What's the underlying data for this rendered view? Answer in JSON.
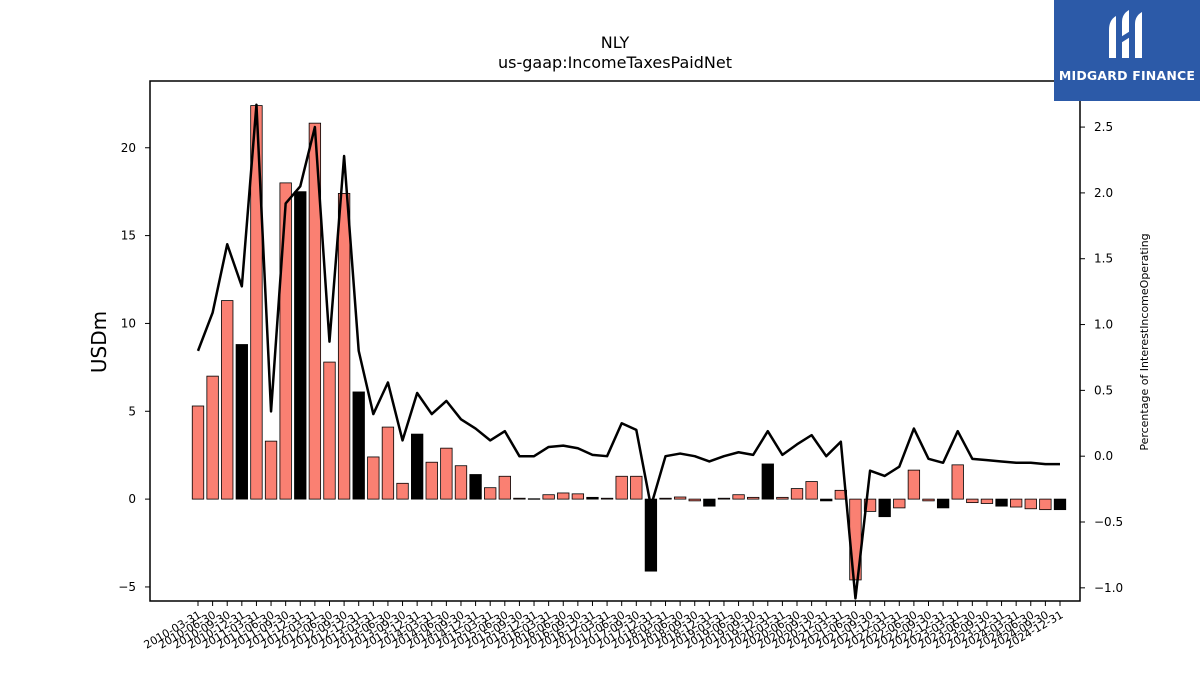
{
  "chart_data": {
    "type": "bar",
    "title": "NLY",
    "subtitle": "us-gaap:IncomeTaxesPaidNet",
    "ylabel": "USDm",
    "y2label": "Percentage of InterestIncomeOperating",
    "ylim": [
      -5.8,
      23.8
    ],
    "y2lim": [
      -1.1,
      2.85
    ],
    "yticks": [
      -5,
      0,
      5,
      10,
      15,
      20
    ],
    "y2ticks": [
      -1.0,
      -0.5,
      0.0,
      0.5,
      1.0,
      1.5,
      2.0,
      2.5
    ],
    "grid": false,
    "bar_color": "#fa8072",
    "q4_bar_color": "#000000",
    "line_color": "#000000",
    "categories": [
      "2010-03-31",
      "2010-06-30",
      "2010-09-30",
      "2010-12-31",
      "2011-03-31",
      "2011-06-30",
      "2011-09-30",
      "2011-12-31",
      "2012-03-31",
      "2012-06-30",
      "2012-09-30",
      "2012-12-31",
      "2013-03-31",
      "2013-06-30",
      "2013-09-30",
      "2013-12-31",
      "2014-03-31",
      "2014-06-30",
      "2014-09-30",
      "2014-12-31",
      "2015-03-31",
      "2015-06-30",
      "2015-09-30",
      "2015-12-31",
      "2016-03-31",
      "2016-06-30",
      "2016-09-30",
      "2016-12-31",
      "2017-03-31",
      "2017-06-30",
      "2017-09-30",
      "2017-12-31",
      "2018-03-31",
      "2018-06-30",
      "2018-09-30",
      "2018-12-31",
      "2019-03-31",
      "2019-06-30",
      "2019-09-30",
      "2019-12-31",
      "2020-03-31",
      "2020-06-30",
      "2020-09-30",
      "2020-12-31",
      "2021-03-31",
      "2021-06-30",
      "2021-09-30",
      "2021-12-31",
      "2022-03-31",
      "2022-06-30",
      "2022-09-30",
      "2022-12-31",
      "2023-03-31",
      "2023-06-30",
      "2023-09-30",
      "2023-12-31",
      "2024-03-31",
      "2024-06-30",
      "2024-09-30",
      "2024-12-31"
    ],
    "series": [
      {
        "kind": "bar",
        "values": [
          5.3,
          7.0,
          11.3,
          8.8,
          22.4,
          3.3,
          18.0,
          17.5,
          21.4,
          7.8,
          17.4,
          6.1,
          2.4,
          4.1,
          0.9,
          3.7,
          2.1,
          2.9,
          1.9,
          1.4,
          0.65,
          1.3,
          0.05,
          0.02,
          0.25,
          0.35,
          0.3,
          0.1,
          0.05,
          1.3,
          1.3,
          -4.1,
          0.05,
          0.12,
          -0.1,
          -0.4,
          0.05,
          0.25,
          0.1,
          2.0,
          0.1,
          0.6,
          1.0,
          -0.1,
          0.5,
          -4.6,
          -0.7,
          -1.0,
          -0.5,
          1.65,
          -0.1,
          -0.5,
          1.95,
          -0.2,
          -0.25,
          -0.4,
          -0.45,
          -0.55,
          -0.6,
          -0.6
        ]
      },
      {
        "kind": "line",
        "axis": "right",
        "values": [
          0.8,
          1.09,
          1.61,
          1.29,
          2.67,
          0.34,
          1.92,
          2.05,
          2.5,
          0.87,
          2.28,
          0.8,
          0.32,
          0.56,
          0.12,
          0.48,
          0.32,
          0.42,
          0.28,
          0.21,
          0.12,
          0.19,
          0.0,
          0.0,
          0.07,
          0.08,
          0.06,
          0.01,
          0.0,
          0.25,
          0.2,
          -0.38,
          0.0,
          0.02,
          0.0,
          -0.04,
          0.0,
          0.03,
          0.01,
          0.19,
          0.01,
          0.09,
          0.16,
          0.0,
          0.11,
          -1.08,
          -0.11,
          -0.15,
          -0.08,
          0.21,
          -0.02,
          -0.05,
          0.19,
          -0.02,
          -0.03,
          -0.04,
          -0.05,
          -0.05,
          -0.06,
          -0.06
        ]
      }
    ]
  },
  "logo": {
    "text": "MIDGARD FINANCE"
  }
}
